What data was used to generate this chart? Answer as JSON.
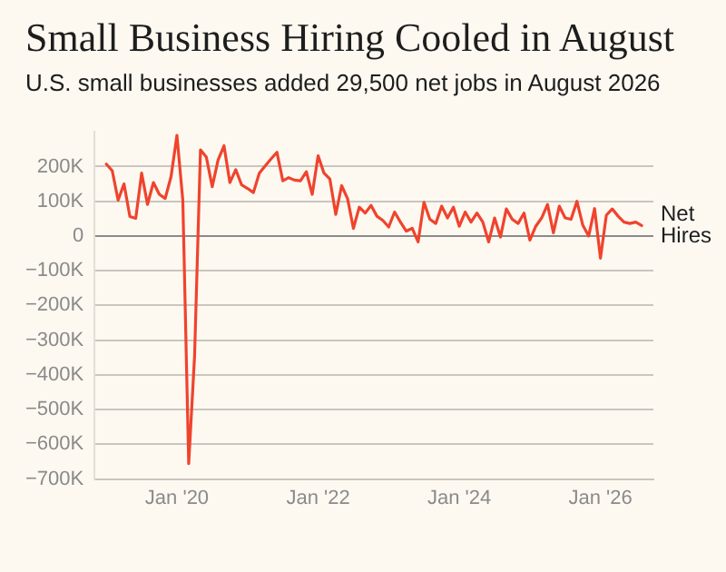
{
  "chart_data": {
    "type": "line",
    "title": "Small Business Hiring Cooled in August",
    "subtitle": "U.S. small businesses added 29,500 net jobs in August 2026",
    "x": [
      "2019-01",
      "2019-02",
      "2019-03",
      "2019-04",
      "2019-05",
      "2019-06",
      "2019-07",
      "2019-08",
      "2019-09",
      "2019-10",
      "2019-11",
      "2019-12",
      "2020-01",
      "2020-02",
      "2020-03",
      "2020-04",
      "2020-05",
      "2020-06",
      "2020-07",
      "2020-08",
      "2020-09",
      "2020-10",
      "2020-11",
      "2020-12",
      "2021-01",
      "2021-02",
      "2021-03",
      "2021-04",
      "2021-05",
      "2021-06",
      "2021-07",
      "2021-08",
      "2021-09",
      "2021-10",
      "2021-11",
      "2021-12",
      "2022-01",
      "2022-02",
      "2022-03",
      "2022-04",
      "2022-05",
      "2022-06",
      "2022-07",
      "2022-08",
      "2022-09",
      "2022-10",
      "2022-11",
      "2022-12",
      "2023-01",
      "2023-02",
      "2023-03",
      "2023-04",
      "2023-05",
      "2023-06",
      "2023-07",
      "2023-08",
      "2023-09",
      "2023-10",
      "2023-11",
      "2023-12",
      "2024-01",
      "2024-02",
      "2024-03",
      "2024-04",
      "2024-05",
      "2024-06",
      "2024-07",
      "2024-08",
      "2024-09",
      "2024-10",
      "2024-11",
      "2024-12",
      "2025-01",
      "2025-02",
      "2025-03",
      "2025-04",
      "2025-05",
      "2025-06",
      "2025-07",
      "2025-08",
      "2025-09",
      "2025-10",
      "2025-11",
      "2025-12",
      "2026-01",
      "2026-02",
      "2026-03",
      "2026-04",
      "2026-05",
      "2026-06",
      "2026-07",
      "2026-08"
    ],
    "series": [
      {
        "name": "Net Hires",
        "color": "#f0432d",
        "values": [
          207000,
          188000,
          103000,
          150000,
          56000,
          51000,
          181000,
          91000,
          154000,
          120000,
          108000,
          171000,
          290000,
          103000,
          -656000,
          -345000,
          248000,
          227000,
          142000,
          219000,
          260000,
          154000,
          191000,
          147000,
          137000,
          125000,
          181000,
          202000,
          222000,
          241000,
          159000,
          168000,
          161000,
          159000,
          185000,
          120000,
          231000,
          181000,
          164000,
          62000,
          145000,
          108000,
          22000,
          83000,
          66000,
          88000,
          57000,
          45000,
          26000,
          69000,
          40000,
          14000,
          22000,
          -17000,
          97000,
          48000,
          36000,
          86000,
          52000,
          83000,
          28000,
          69000,
          40000,
          66000,
          40000,
          -17000,
          52000,
          -3000,
          78000,
          48000,
          36000,
          66000,
          -12000,
          28000,
          52000,
          91000,
          9000,
          86000,
          52000,
          48000,
          100000,
          31000,
          0,
          79000,
          -64000,
          60000,
          78000,
          57000,
          40000,
          36000,
          40000,
          30000
        ]
      }
    ],
    "xlim": [
      "2018-11",
      "2026-10"
    ],
    "xticks": [
      {
        "value": "2020-01",
        "label": "Jan '20"
      },
      {
        "value": "2022-01",
        "label": "Jan '22"
      },
      {
        "value": "2024-01",
        "label": "Jan '24"
      },
      {
        "value": "2026-01",
        "label": "Jan '26"
      }
    ],
    "ylim": [
      -700000,
      300000
    ],
    "yticks": [
      {
        "value": -700000,
        "label": "−700K"
      },
      {
        "value": -600000,
        "label": "−600K"
      },
      {
        "value": -500000,
        "label": "−500K"
      },
      {
        "value": -400000,
        "label": "−400K"
      },
      {
        "value": -300000,
        "label": "−300K"
      },
      {
        "value": -200000,
        "label": "−200K"
      },
      {
        "value": -100000,
        "label": "−100K"
      },
      {
        "value": 0,
        "label": "0"
      },
      {
        "value": 100000,
        "label": "100K"
      },
      {
        "value": 200000,
        "label": "200K"
      }
    ],
    "grid": "y",
    "legend": false,
    "marker": "none",
    "line_style": "solid"
  }
}
